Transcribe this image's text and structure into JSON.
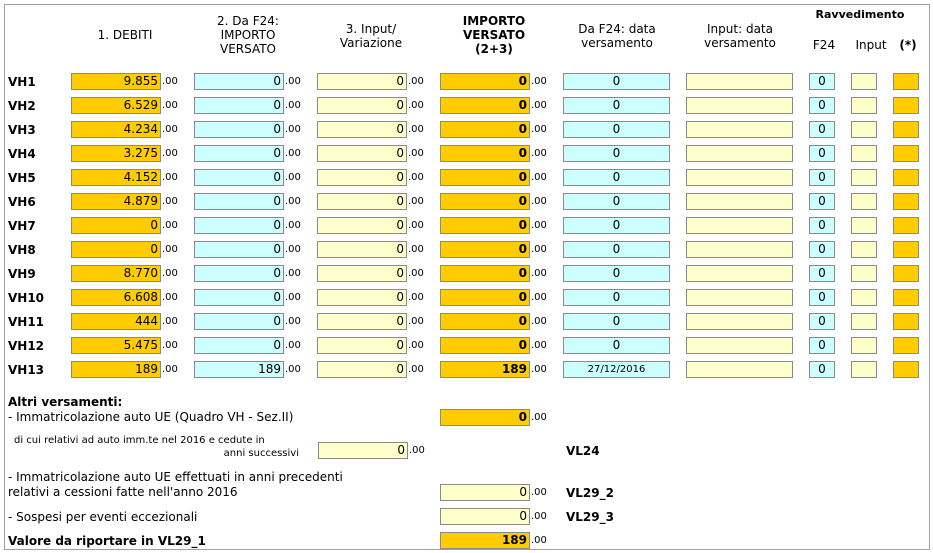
{
  "headers": {
    "col1": "1. DEBITI",
    "col2": [
      "2. Da F24:",
      "IMPORTO",
      "VERSATO"
    ],
    "col3": [
      "3. Input/",
      "Variazione"
    ],
    "col4": [
      "IMPORTO",
      "VERSATO",
      "(2+3)"
    ],
    "col5": [
      "Da F24: data",
      "versamento"
    ],
    "col6": [
      "Input: data",
      "versamento"
    ],
    "ravvedimento": "Ravvedimento",
    "rav_f24": "F24",
    "rav_input": "Input",
    "rav_star": "(*)"
  },
  "decimals": ".00",
  "rows": [
    {
      "label": "VH1",
      "debiti": "9.855",
      "f24": "0",
      "input": "0",
      "importo": "0",
      "data_f24": "0",
      "data_input": "",
      "rav_f24": "0"
    },
    {
      "label": "VH2",
      "debiti": "6.529",
      "f24": "0",
      "input": "0",
      "importo": "0",
      "data_f24": "0",
      "data_input": "",
      "rav_f24": "0"
    },
    {
      "label": "VH3",
      "debiti": "4.234",
      "f24": "0",
      "input": "0",
      "importo": "0",
      "data_f24": "0",
      "data_input": "",
      "rav_f24": "0"
    },
    {
      "label": "VH4",
      "debiti": "3.275",
      "f24": "0",
      "input": "0",
      "importo": "0",
      "data_f24": "0",
      "data_input": "",
      "rav_f24": "0"
    },
    {
      "label": "VH5",
      "debiti": "4.152",
      "f24": "0",
      "input": "0",
      "importo": "0",
      "data_f24": "0",
      "data_input": "",
      "rav_f24": "0"
    },
    {
      "label": "VH6",
      "debiti": "4.879",
      "f24": "0",
      "input": "0",
      "importo": "0",
      "data_f24": "0",
      "data_input": "",
      "rav_f24": "0"
    },
    {
      "label": "VH7",
      "debiti": "0",
      "f24": "0",
      "input": "0",
      "importo": "0",
      "data_f24": "0",
      "data_input": "",
      "rav_f24": "0"
    },
    {
      "label": "VH8",
      "debiti": "0",
      "f24": "0",
      "input": "0",
      "importo": "0",
      "data_f24": "0",
      "data_input": "",
      "rav_f24": "0"
    },
    {
      "label": "VH9",
      "debiti": "8.770",
      "f24": "0",
      "input": "0",
      "importo": "0",
      "data_f24": "0",
      "data_input": "",
      "rav_f24": "0"
    },
    {
      "label": "VH10",
      "debiti": "6.608",
      "f24": "0",
      "input": "0",
      "importo": "0",
      "data_f24": "0",
      "data_input": "",
      "rav_f24": "0"
    },
    {
      "label": "VH11",
      "debiti": "444",
      "f24": "0",
      "input": "0",
      "importo": "0",
      "data_f24": "0",
      "data_input": "",
      "rav_f24": "0"
    },
    {
      "label": "VH12",
      "debiti": "5.475",
      "f24": "0",
      "input": "0",
      "importo": "0",
      "data_f24": "0",
      "data_input": "",
      "rav_f24": "0"
    },
    {
      "label": "VH13",
      "debiti": "189",
      "f24": "189",
      "input": "0",
      "importo": "189",
      "data_f24": "27/12/2016",
      "data_input": "",
      "rav_f24": "0"
    }
  ],
  "altri": {
    "title": "Altri versamenti:",
    "immatricolazione_label": "- Immatricolazione auto UE (Quadro VH - Sez.II)",
    "immatricolazione_value": "0",
    "di_cui_label_1": "di cui relativi ad auto imm.te nel 2016 e cedute in",
    "di_cui_label_2": "anni successivi",
    "di_cui_value": "0",
    "vl24": "VL24",
    "precedenti_label_1": "- Immatricolazione auto UE effettuati in anni precedenti",
    "precedenti_label_2": "relativi a cessioni fatte nell'anno 2016",
    "precedenti_value": "0",
    "vl29_2": "VL29_2",
    "sospesi_label": "- Sospesi per eventi eccezionali",
    "sospesi_value": "0",
    "vl29_3": "VL29_3",
    "valore_label": "Valore da riportare in VL29_1",
    "valore_value": "189"
  },
  "colors": {
    "orange": "#ffcc00",
    "cyan": "#ccffff",
    "yellow": "#ffffcc"
  }
}
